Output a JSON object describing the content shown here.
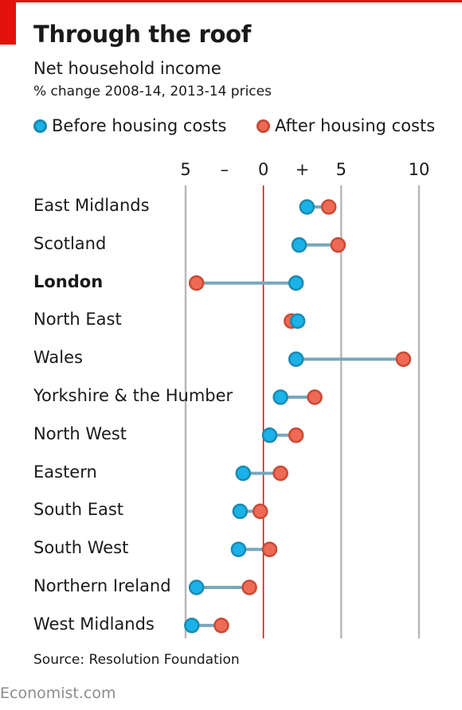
{
  "header": {
    "title": "Through the roof",
    "subtitle": "Net household income",
    "subtitle2": "% change 2008-14, 2013-14 prices"
  },
  "legend": {
    "before": "Before housing costs",
    "after": "After housing costs"
  },
  "colors": {
    "before_fill": "#1ab2e8",
    "before_stroke": "#1a8ab0",
    "after_fill": "#ee6a55",
    "after_stroke": "#c94a36",
    "connector": "#79a7bd",
    "zero_line": "#e3120b",
    "grid": "#b7b7b7",
    "accent": "#e3120b"
  },
  "chart_data": {
    "type": "dot",
    "xlim": [
      -5,
      10
    ],
    "x_ticks": [
      {
        "value": -5,
        "label": "5"
      },
      {
        "value": -2.5,
        "label": "–"
      },
      {
        "value": 0,
        "label": "0"
      },
      {
        "value": 2.5,
        "label": "+"
      },
      {
        "value": 5,
        "label": "5"
      },
      {
        "value": 10,
        "label": "10"
      }
    ],
    "grid_values": [
      -5,
      0,
      5,
      10
    ],
    "categories": [
      "East Midlands",
      "Scotland",
      "London",
      "North East",
      "Wales",
      "Yorkshire & the Humber",
      "North West",
      "Eastern",
      "South East",
      "South West",
      "Northern Ireland",
      "West Midlands"
    ],
    "highlight": "London",
    "series": [
      {
        "name": "Before housing costs",
        "values": [
          2.8,
          2.3,
          2.1,
          2.2,
          2.1,
          1.1,
          0.4,
          -1.3,
          -1.5,
          -1.6,
          -4.3,
          -4.6
        ]
      },
      {
        "name": "After housing costs",
        "values": [
          4.2,
          4.8,
          -4.3,
          1.8,
          9.0,
          3.3,
          2.1,
          1.1,
          -0.2,
          0.4,
          -0.9,
          -2.7
        ]
      }
    ]
  },
  "footer": {
    "source": "Source: Resolution Foundation",
    "brand": "Economist.com"
  }
}
